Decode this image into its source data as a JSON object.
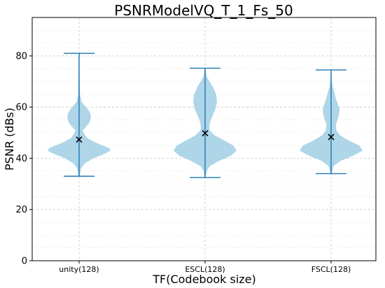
{
  "chart_data": {
    "type": "violin",
    "title": "PSNRModelVQ_T_1_Fs_50",
    "xlabel": "TF(Codebook size)",
    "ylabel": "PSNR (dBs)",
    "ylim": [
      0,
      95
    ],
    "yticks": [
      0,
      20,
      40,
      60,
      80
    ],
    "grid": true,
    "categories": [
      "unity(128)",
      "ESCL(128)",
      "FSCL(128)"
    ],
    "series": [
      {
        "category": "unity(128)",
        "min": 33,
        "max": 81,
        "mean": 47.3,
        "density": [
          [
            33,
            0.02
          ],
          [
            36,
            0.06
          ],
          [
            38,
            0.18
          ],
          [
            40,
            0.45
          ],
          [
            42,
            0.85
          ],
          [
            43,
            1.0
          ],
          [
            44,
            0.95
          ],
          [
            46,
            0.55
          ],
          [
            48,
            0.25
          ],
          [
            50,
            0.14
          ],
          [
            51,
            0.12
          ],
          [
            52,
            0.2
          ],
          [
            54,
            0.33
          ],
          [
            56,
            0.38
          ],
          [
            58,
            0.34
          ],
          [
            60,
            0.22
          ],
          [
            62,
            0.08
          ],
          [
            65,
            0.03
          ],
          [
            70,
            0.02
          ],
          [
            81,
            0.01
          ]
        ]
      },
      {
        "category": "ESCL(128)",
        "min": 32.5,
        "max": 75.2,
        "mean": 49.8,
        "density": [
          [
            32.5,
            0.02
          ],
          [
            35,
            0.05
          ],
          [
            37,
            0.15
          ],
          [
            39,
            0.45
          ],
          [
            41,
            0.82
          ],
          [
            43,
            1.0
          ],
          [
            45,
            0.9
          ],
          [
            47,
            0.6
          ],
          [
            49,
            0.3
          ],
          [
            51,
            0.14
          ],
          [
            53,
            0.14
          ],
          [
            55,
            0.18
          ],
          [
            57,
            0.25
          ],
          [
            59,
            0.32
          ],
          [
            62,
            0.38
          ],
          [
            65,
            0.35
          ],
          [
            68,
            0.24
          ],
          [
            70,
            0.14
          ],
          [
            72,
            0.05
          ],
          [
            75.2,
            0.01
          ]
        ]
      },
      {
        "category": "FSCL(128)",
        "min": 34,
        "max": 74.5,
        "mean": 48.3,
        "density": [
          [
            34,
            0.02
          ],
          [
            37,
            0.08
          ],
          [
            39,
            0.3
          ],
          [
            41,
            0.7
          ],
          [
            43,
            1.0
          ],
          [
            45,
            0.9
          ],
          [
            47,
            0.55
          ],
          [
            49,
            0.28
          ],
          [
            51,
            0.17
          ],
          [
            53,
            0.15
          ],
          [
            55,
            0.2
          ],
          [
            57,
            0.25
          ],
          [
            59,
            0.27
          ],
          [
            61,
            0.22
          ],
          [
            63,
            0.16
          ],
          [
            66,
            0.1
          ],
          [
            68,
            0.05
          ],
          [
            71,
            0.02
          ],
          [
            74.5,
            0.01
          ]
        ]
      }
    ]
  }
}
